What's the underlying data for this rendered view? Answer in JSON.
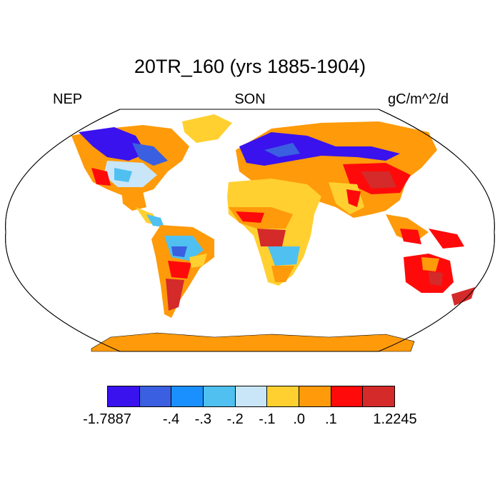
{
  "title": "20TR_160 (yrs 1885-1904)",
  "label_left": "NEP",
  "label_center": "SON",
  "label_right": "gC/m^2/d",
  "colorbar": {
    "colors": [
      "#3a12ee",
      "#3a5fe0",
      "#1a90ff",
      "#4fc0f0",
      "#c8e6f8",
      "#ffd030",
      "#ff9a0a",
      "#ff0a0a",
      "#d42a2a"
    ],
    "tick_labels": [
      "-1.7887",
      "-.4",
      "-.3",
      "-.2",
      "-.1",
      ".0",
      ".1",
      "1.2245"
    ]
  }
}
